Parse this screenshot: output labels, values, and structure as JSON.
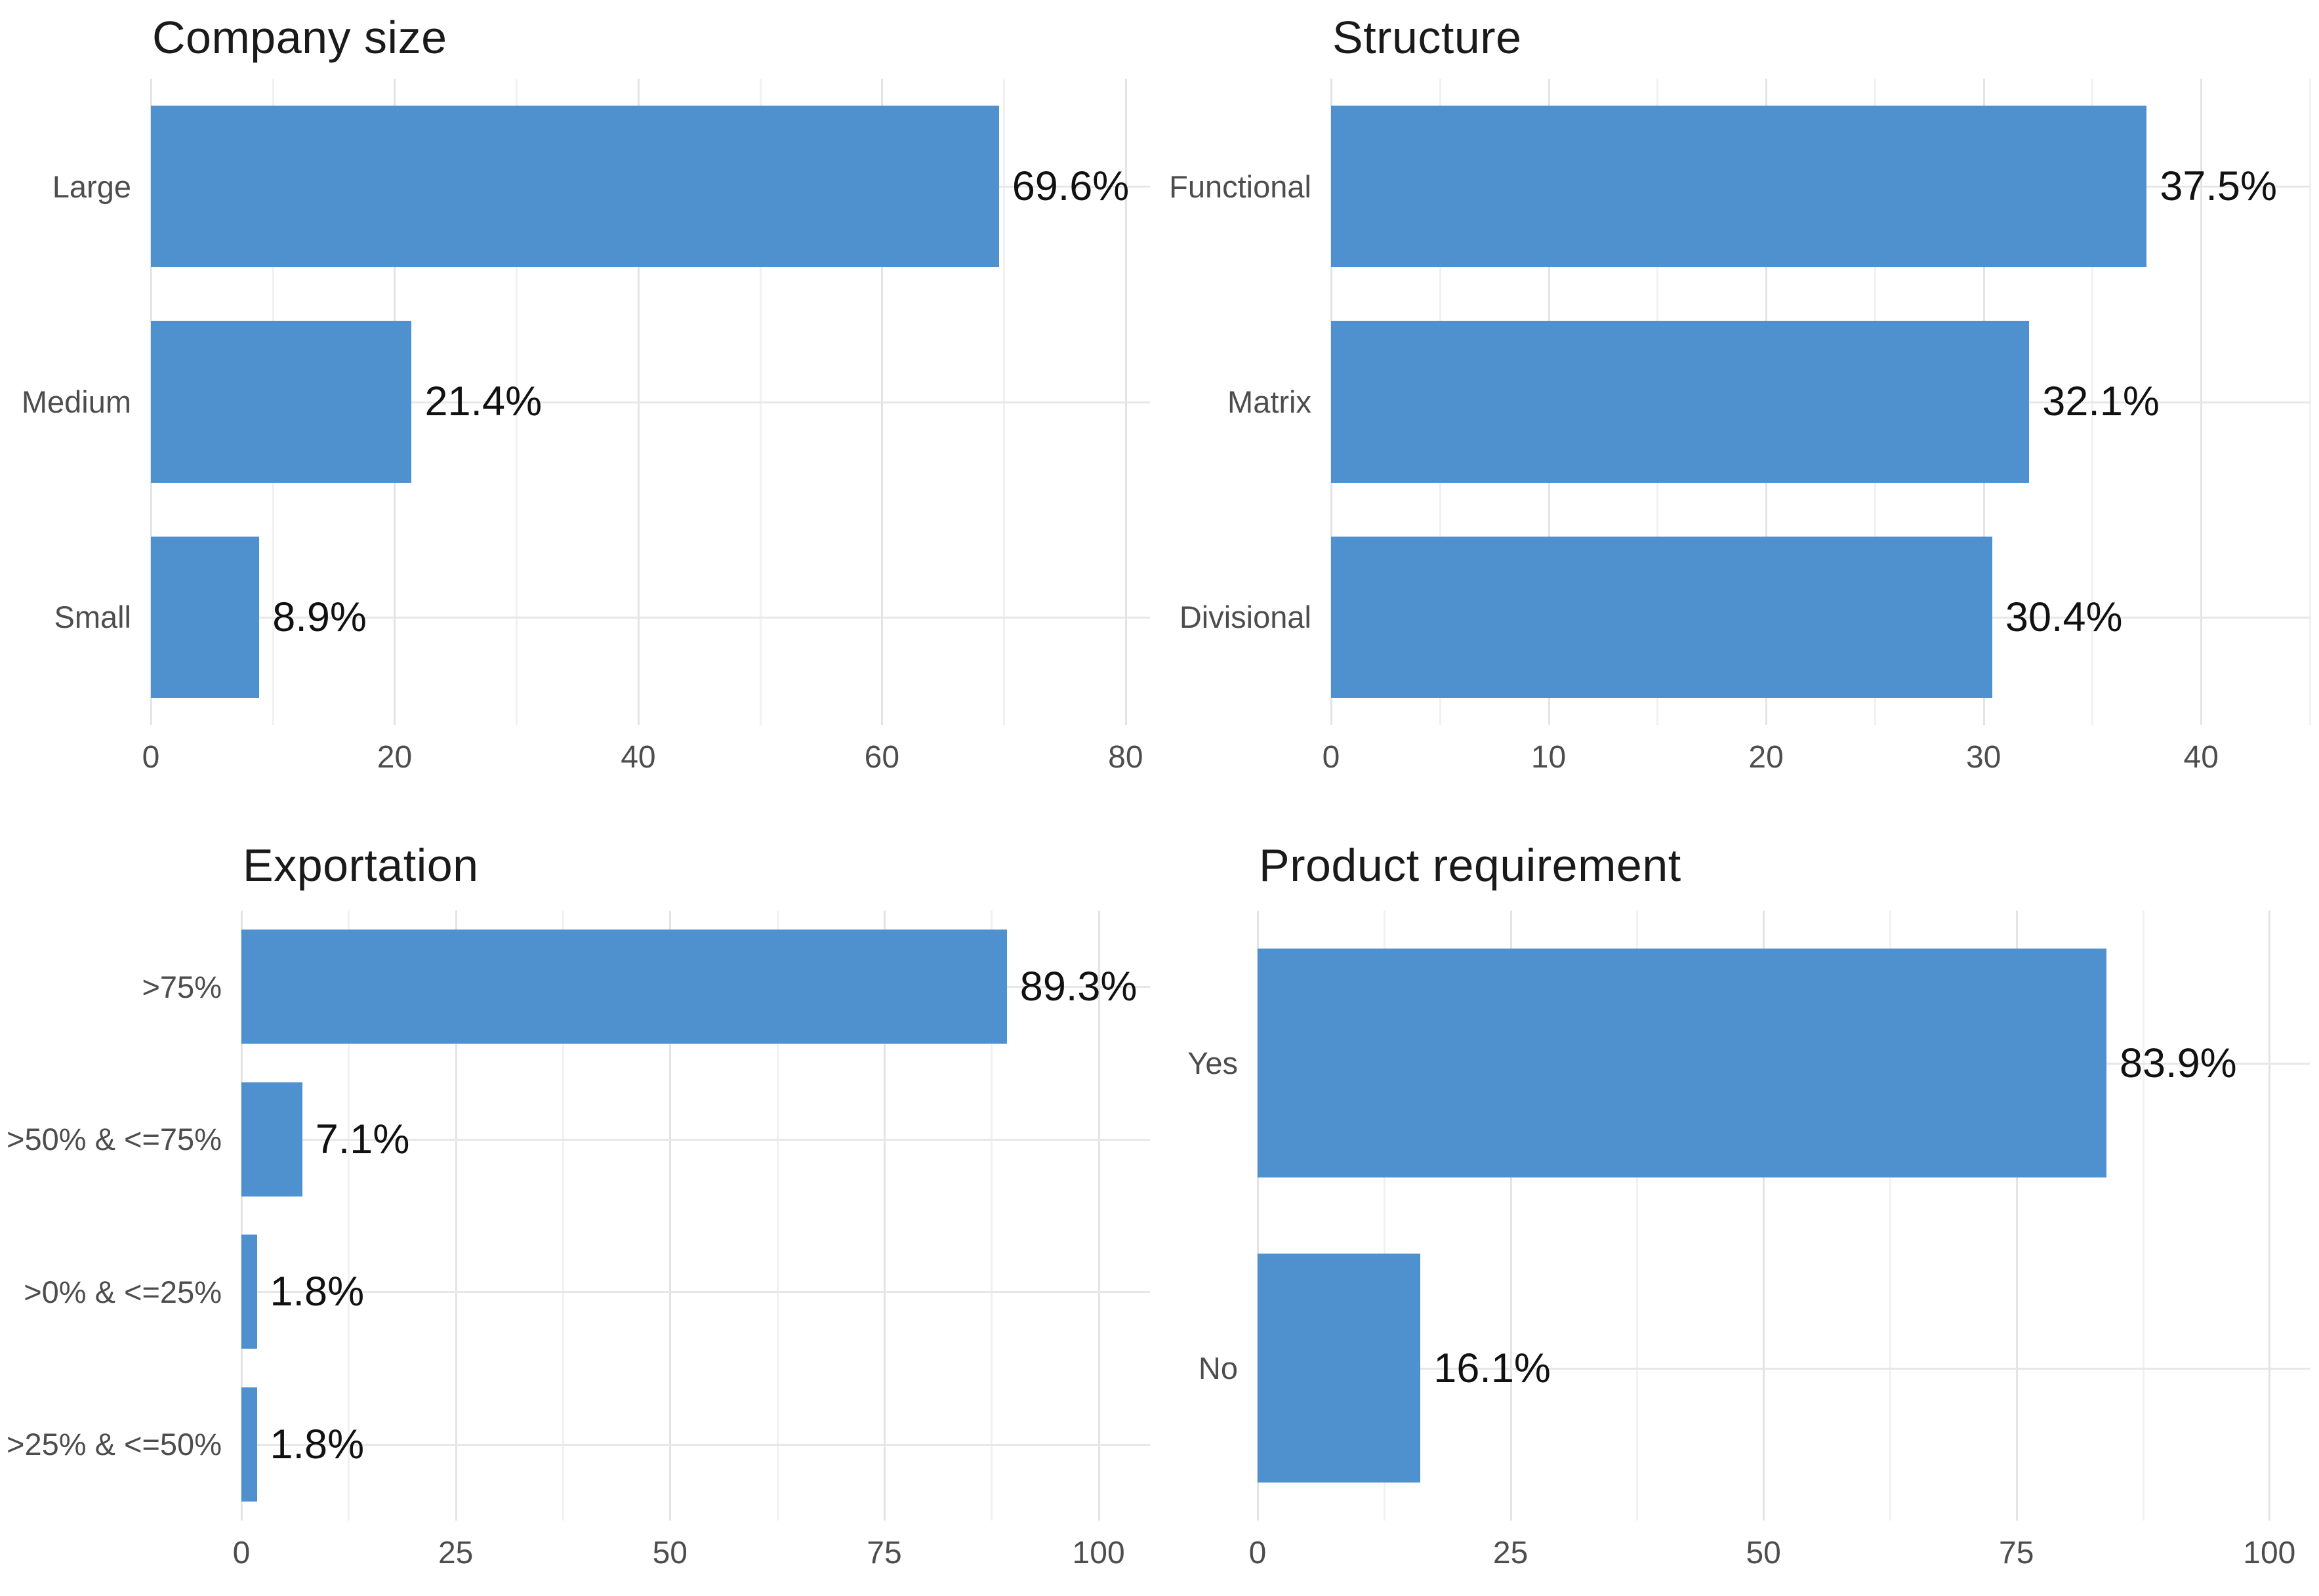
{
  "colors": {
    "bar_fill": "#4e91ce",
    "axis_text": "#4d4d4d",
    "value_text": "#111111",
    "title_text": "#1a1a1a",
    "grid_major": "#e4e4e4",
    "grid_minor": "#f1f1f1",
    "background": "#ffffff"
  },
  "chart_data": [
    {
      "type": "bar",
      "orientation": "horizontal",
      "title": "Company size",
      "categories": [
        "Large",
        "Medium",
        "Small"
      ],
      "values": [
        69.6,
        21.4,
        8.9
      ],
      "value_labels": [
        "69.6%",
        "21.4%",
        "8.9%"
      ],
      "x_ticks": [
        0,
        20,
        40,
        60,
        80
      ],
      "xlim": [
        0,
        82
      ],
      "minor_step": 10,
      "grid": true,
      "legend": false,
      "layout": {
        "label_col": 230
      }
    },
    {
      "type": "bar",
      "orientation": "horizontal",
      "title": "Structure",
      "categories": [
        "Functional",
        "Matrix",
        "Divisional"
      ],
      "values": [
        37.5,
        32.1,
        30.4
      ],
      "value_labels": [
        "37.5%",
        "32.1%",
        "30.4%"
      ],
      "x_ticks": [
        0,
        10,
        20,
        30,
        40
      ],
      "xlim": [
        0,
        45
      ],
      "minor_step": 5,
      "grid": true,
      "legend": false,
      "layout": {
        "label_col": 262
      }
    },
    {
      "type": "bar",
      "orientation": "horizontal",
      "title": "Exportation",
      "categories": [
        ">75%",
        ">50% & <=75%",
        ">0% & <=25%",
        ">25% & <=50%"
      ],
      "values": [
        89.3,
        7.1,
        1.8,
        1.8
      ],
      "value_labels": [
        "89.3%",
        "7.1%",
        "1.8%",
        "1.8%"
      ],
      "x_ticks": [
        0,
        25,
        50,
        75,
        100
      ],
      "xlim": [
        0,
        106
      ],
      "minor_step": 12.5,
      "grid": true,
      "legend": false,
      "layout": {
        "label_col": 368
      }
    },
    {
      "type": "bar",
      "orientation": "horizontal",
      "title": "Product requirement",
      "categories": [
        "Yes",
        "No"
      ],
      "values": [
        83.9,
        16.1
      ],
      "value_labels": [
        "83.9%",
        "16.1%"
      ],
      "x_ticks": [
        0,
        25,
        50,
        75,
        100
      ],
      "xlim": [
        0,
        104
      ],
      "minor_step": 12.5,
      "grid": true,
      "legend": false,
      "layout": {
        "label_col": 150
      }
    }
  ]
}
